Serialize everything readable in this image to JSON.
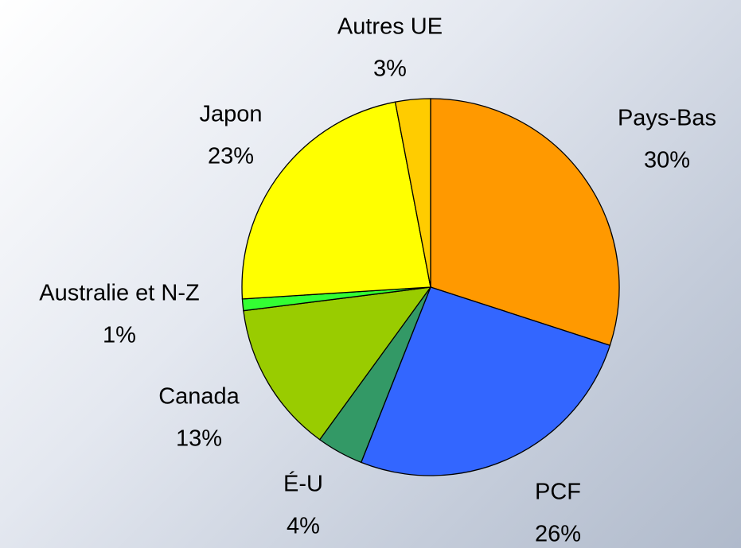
{
  "chart_data": {
    "type": "pie",
    "categories": [
      "Pays-Bas",
      "PCF",
      "É-U",
      "Canada",
      "Australie et N-Z",
      "Japon",
      "Autres UE"
    ],
    "values": [
      30,
      26,
      4,
      13,
      1,
      23,
      3
    ],
    "value_labels": [
      "30%",
      "26%",
      "4%",
      "13%",
      "1%",
      "23%",
      "3%"
    ],
    "colors": [
      "#ff9900",
      "#3366ff",
      "#339966",
      "#99cc00",
      "#33ff33",
      "#ffff00",
      "#ffcc00"
    ]
  }
}
